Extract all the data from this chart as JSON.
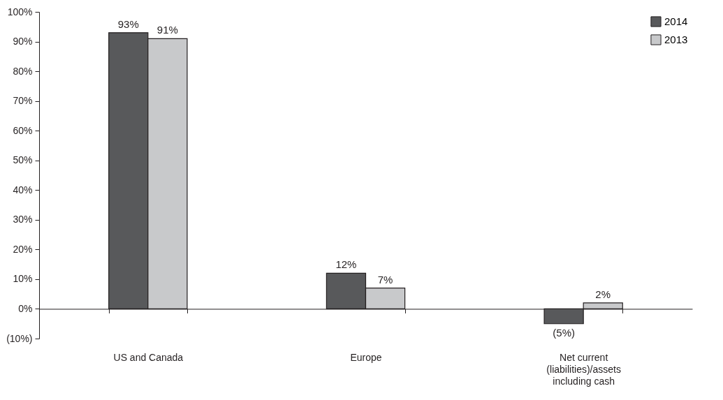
{
  "chart_data": {
    "type": "bar",
    "categories": [
      "US and Canada",
      "Europe",
      "Net current (liabilities)/assets including cash"
    ],
    "series": [
      {
        "name": "2014",
        "color": "#58595b",
        "values": [
          93,
          12,
          -5
        ],
        "value_labels": [
          "93%",
          "12%",
          "(5%)"
        ]
      },
      {
        "name": "2013",
        "color": "#c8c9cb",
        "values": [
          91,
          7,
          2
        ],
        "value_labels": [
          "91%",
          "7%",
          "2%"
        ]
      }
    ],
    "ylim": [
      -10,
      100
    ],
    "yticks": [
      {
        "value": -10,
        "label": "(10%)"
      },
      {
        "value": 0,
        "label": "0%"
      },
      {
        "value": 10,
        "label": "10%"
      },
      {
        "value": 20,
        "label": "20%"
      },
      {
        "value": 30,
        "label": "30%"
      },
      {
        "value": 40,
        "label": "40%"
      },
      {
        "value": 50,
        "label": "50%"
      },
      {
        "value": 60,
        "label": "60%"
      },
      {
        "value": 70,
        "label": "70%"
      },
      {
        "value": 80,
        "label": "80%"
      },
      {
        "value": 90,
        "label": "90%"
      },
      {
        "value": 100,
        "label": "100%"
      }
    ],
    "legend": "top right"
  }
}
